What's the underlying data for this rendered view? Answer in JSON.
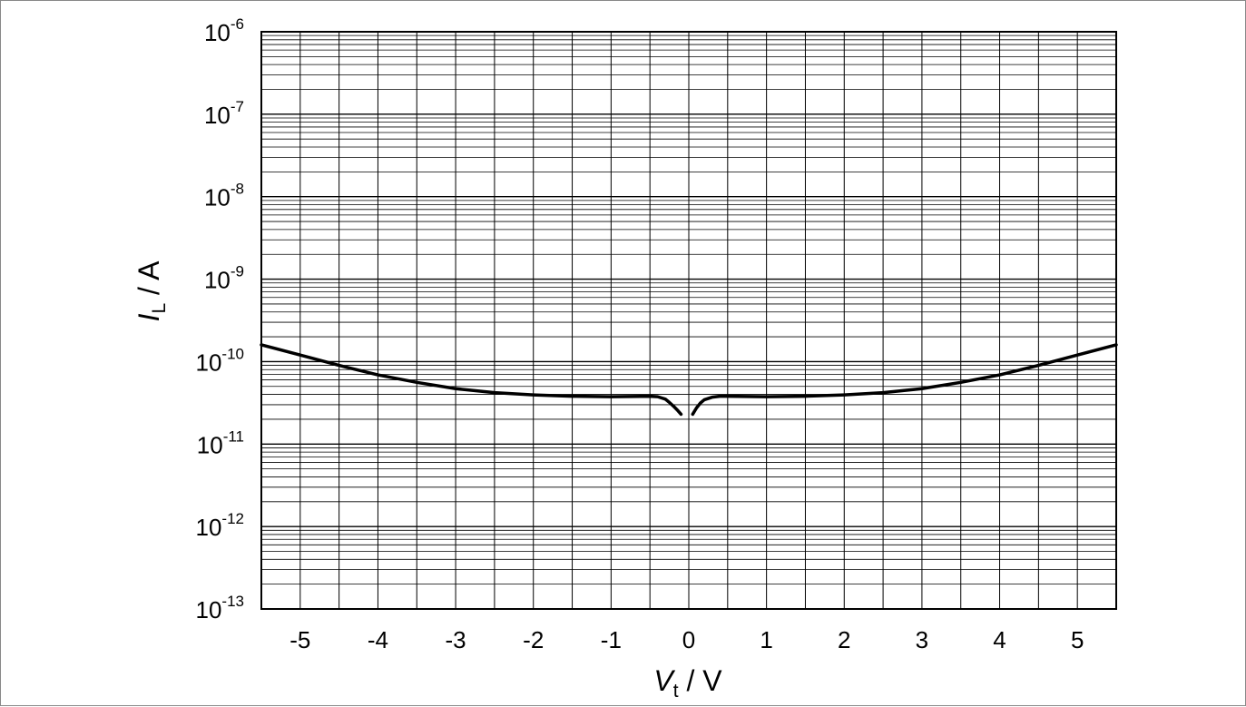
{
  "chart_data": {
    "type": "line",
    "x_axis": {
      "symbol": "V",
      "subscript": "t",
      "unit": " / V",
      "range": [
        -5.5,
        5.5
      ],
      "ticks": [
        -5,
        -4,
        -3,
        -2,
        -1,
        0,
        1,
        2,
        3,
        4,
        5
      ],
      "tick_labels": [
        "-5",
        "-4",
        "-3",
        "-2",
        "-1",
        "0",
        "1",
        "2",
        "3",
        "4",
        "5"
      ]
    },
    "y_axis": {
      "symbol": "I",
      "subscript": "L",
      "unit": " / A",
      "scale": "log",
      "range": [
        1e-13,
        1e-06
      ],
      "tick_labels": [
        {
          "base": "10",
          "exp": "-6"
        },
        {
          "base": "10",
          "exp": "-7"
        },
        {
          "base": "10",
          "exp": "-8"
        },
        {
          "base": "10",
          "exp": "-9"
        },
        {
          "base": "10",
          "exp": "-10"
        },
        {
          "base": "10",
          "exp": "-11"
        },
        {
          "base": "10",
          "exp": "-12"
        },
        {
          "base": "10",
          "exp": "-13"
        }
      ]
    },
    "grid": true,
    "line_color": "#000000",
    "series": [
      {
        "x": [
          -5.5,
          -5.0,
          -4.5,
          -4.0,
          -3.5,
          -3.0,
          -2.5,
          -2.0,
          -1.5,
          -1.0,
          -0.5,
          -0.4,
          -0.3,
          -0.25,
          -0.2,
          -0.15,
          -0.1
        ],
        "y": [
          1.6e-10,
          1.2e-10,
          9e-11,
          6.9e-11,
          5.6e-11,
          4.7e-11,
          4.2e-11,
          3.95e-11,
          3.8e-11,
          3.75e-11,
          3.8e-11,
          3.75e-11,
          3.5e-11,
          3.2e-11,
          2.9e-11,
          2.6e-11,
          2.3e-11
        ]
      },
      {
        "x": [
          0.05,
          0.1,
          0.15,
          0.2,
          0.3,
          0.4,
          0.5,
          1.0,
          1.5,
          2.0,
          2.5,
          3.0,
          3.5,
          4.0,
          4.5,
          5.0,
          5.5
        ],
        "y": [
          2.3e-11,
          2.75e-11,
          3.15e-11,
          3.45e-11,
          3.7e-11,
          3.8e-11,
          3.8e-11,
          3.75e-11,
          3.8e-11,
          3.95e-11,
          4.2e-11,
          4.7e-11,
          5.6e-11,
          6.9e-11,
          9e-11,
          1.2e-10,
          1.6e-10
        ]
      }
    ]
  }
}
